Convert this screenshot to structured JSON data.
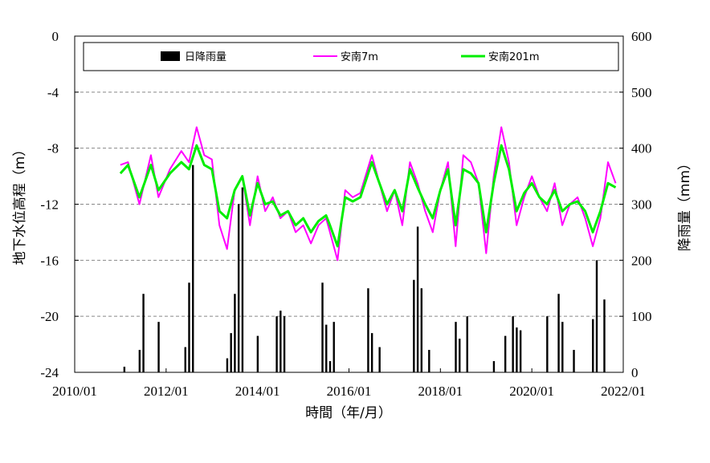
{
  "chart_data": {
    "type": "line",
    "xlabel": "時間（年/月）",
    "ylabel_left": "地下水位高程（m）",
    "ylabel_right": "降雨量（mm）",
    "x_ticks": [
      "2010/01",
      "2012/01",
      "2014/01",
      "2016/01",
      "2018/01",
      "2020/01",
      "2022/01"
    ],
    "ylim_left": [
      -24,
      0
    ],
    "ylim_right": [
      0,
      600
    ],
    "y_ticks_left": [
      "0",
      "-4",
      "-8",
      "-12",
      "-16",
      "-20",
      "-24"
    ],
    "y_ticks_right": [
      "600",
      "500",
      "400",
      "300",
      "200",
      "100",
      "0"
    ],
    "grid": "horizontal dashed",
    "legend_position": "top",
    "colors": {
      "rain": "#000000",
      "w7": "#ff00ff",
      "w201": "#00ee00"
    },
    "series": [
      {
        "name": "日降雨量",
        "axis": "right",
        "type": "bar",
        "x": [
          "2011/02",
          "2011/06",
          "2011/07",
          "2011/11",
          "2012/06",
          "2012/07",
          "2012/08",
          "2013/05",
          "2013/06",
          "2013/07",
          "2013/08",
          "2013/09",
          "2014/01",
          "2014/06",
          "2014/07",
          "2014/08",
          "2015/06",
          "2015/07",
          "2015/08",
          "2015/09",
          "2016/06",
          "2016/07",
          "2016/09",
          "2017/06",
          "2017/07",
          "2017/08",
          "2017/10",
          "2018/05",
          "2018/06",
          "2018/08",
          "2019/03",
          "2019/06",
          "2019/08",
          "2019/09",
          "2019/10",
          "2020/05",
          "2020/08",
          "2020/09",
          "2020/12",
          "2021/05",
          "2021/06",
          "2021/08"
        ],
        "values": [
          10,
          40,
          140,
          90,
          45,
          160,
          370,
          25,
          70,
          140,
          300,
          330,
          65,
          100,
          110,
          100,
          160,
          85,
          20,
          90,
          150,
          70,
          45,
          165,
          260,
          150,
          40,
          90,
          60,
          100,
          20,
          65,
          100,
          80,
          75,
          100,
          140,
          90,
          40,
          95,
          200,
          130
        ]
      },
      {
        "name": "安南7m",
        "axis": "left",
        "type": "line",
        "x": [
          "2011/01",
          "2011/03",
          "2011/06",
          "2011/09",
          "2011/11",
          "2012/02",
          "2012/05",
          "2012/07",
          "2012/09",
          "2012/11",
          "2013/01",
          "2013/03",
          "2013/05",
          "2013/07",
          "2013/09",
          "2013/11",
          "2014/01",
          "2014/03",
          "2014/05",
          "2014/07",
          "2014/09",
          "2014/11",
          "2015/01",
          "2015/03",
          "2015/05",
          "2015/07",
          "2015/08",
          "2015/10",
          "2015/12",
          "2016/02",
          "2016/04",
          "2016/07",
          "2016/09",
          "2016/11",
          "2017/01",
          "2017/03",
          "2017/05",
          "2017/07",
          "2017/09",
          "2017/11",
          "2018/01",
          "2018/03",
          "2018/05",
          "2018/07",
          "2018/09",
          "2018/11",
          "2019/01",
          "2019/03",
          "2019/05",
          "2019/07",
          "2019/09",
          "2019/11",
          "2020/01",
          "2020/03",
          "2020/05",
          "2020/07",
          "2020/09",
          "2020/11",
          "2021/01",
          "2021/03",
          "2021/05",
          "2021/07",
          "2021/09",
          "2021/11"
        ],
        "values": [
          -9.2,
          -9.0,
          -12.0,
          -8.5,
          -11.5,
          -9.5,
          -8.2,
          -9.0,
          -6.5,
          -8.5,
          -8.8,
          -13.5,
          -15.2,
          -11.0,
          -10.0,
          -13.5,
          -10.0,
          -12.5,
          -11.5,
          -13.0,
          -12.5,
          -14.0,
          -13.5,
          -14.8,
          -13.5,
          -13.0,
          -14.0,
          -16.0,
          -11.0,
          -11.5,
          -11.2,
          -8.5,
          -10.5,
          -12.5,
          -11.0,
          -13.5,
          -9.0,
          -10.5,
          -12.5,
          -14.0,
          -11.0,
          -9.0,
          -15.0,
          -8.5,
          -9.0,
          -10.5,
          -15.5,
          -10.0,
          -6.5,
          -9.0,
          -13.5,
          -11.5,
          -10.0,
          -11.5,
          -12.5,
          -10.5,
          -13.5,
          -12.0,
          -11.5,
          -13.0,
          -15.0,
          -13.0,
          -9.0,
          -10.5
        ]
      },
      {
        "name": "安南201m",
        "axis": "left",
        "type": "line",
        "x": [
          "2011/01",
          "2011/03",
          "2011/06",
          "2011/09",
          "2011/11",
          "2012/02",
          "2012/05",
          "2012/07",
          "2012/09",
          "2012/11",
          "2013/01",
          "2013/03",
          "2013/05",
          "2013/07",
          "2013/09",
          "2013/11",
          "2014/01",
          "2014/03",
          "2014/05",
          "2014/07",
          "2014/09",
          "2014/11",
          "2015/01",
          "2015/03",
          "2015/05",
          "2015/07",
          "2015/08",
          "2015/10",
          "2015/12",
          "2016/02",
          "2016/04",
          "2016/07",
          "2016/09",
          "2016/11",
          "2017/01",
          "2017/03",
          "2017/05",
          "2017/07",
          "2017/09",
          "2017/11",
          "2018/01",
          "2018/03",
          "2018/05",
          "2018/07",
          "2018/09",
          "2018/11",
          "2019/01",
          "2019/03",
          "2019/05",
          "2019/07",
          "2019/09",
          "2019/11",
          "2020/01",
          "2020/03",
          "2020/05",
          "2020/07",
          "2020/09",
          "2020/11",
          "2021/01",
          "2021/03",
          "2021/05",
          "2021/07",
          "2021/09",
          "2021/11"
        ],
        "values": [
          -9.8,
          -9.2,
          -11.5,
          -9.2,
          -11.0,
          -9.8,
          -9.0,
          -9.5,
          -7.8,
          -9.2,
          -9.5,
          -12.5,
          -13.0,
          -11.0,
          -10.0,
          -12.8,
          -10.5,
          -12.0,
          -11.8,
          -12.8,
          -12.5,
          -13.5,
          -13.0,
          -14.0,
          -13.2,
          -12.8,
          -13.5,
          -15.0,
          -11.5,
          -11.8,
          -11.5,
          -9.0,
          -10.5,
          -12.0,
          -11.0,
          -12.5,
          -9.5,
          -10.8,
          -12.0,
          -13.0,
          -11.0,
          -9.5,
          -13.5,
          -9.5,
          -9.8,
          -10.5,
          -14.0,
          -10.5,
          -7.8,
          -9.5,
          -12.5,
          -11.2,
          -10.5,
          -11.5,
          -12.0,
          -11.0,
          -12.5,
          -12.0,
          -11.8,
          -12.5,
          -14.0,
          -12.5,
          -10.5,
          -10.8
        ]
      }
    ]
  }
}
